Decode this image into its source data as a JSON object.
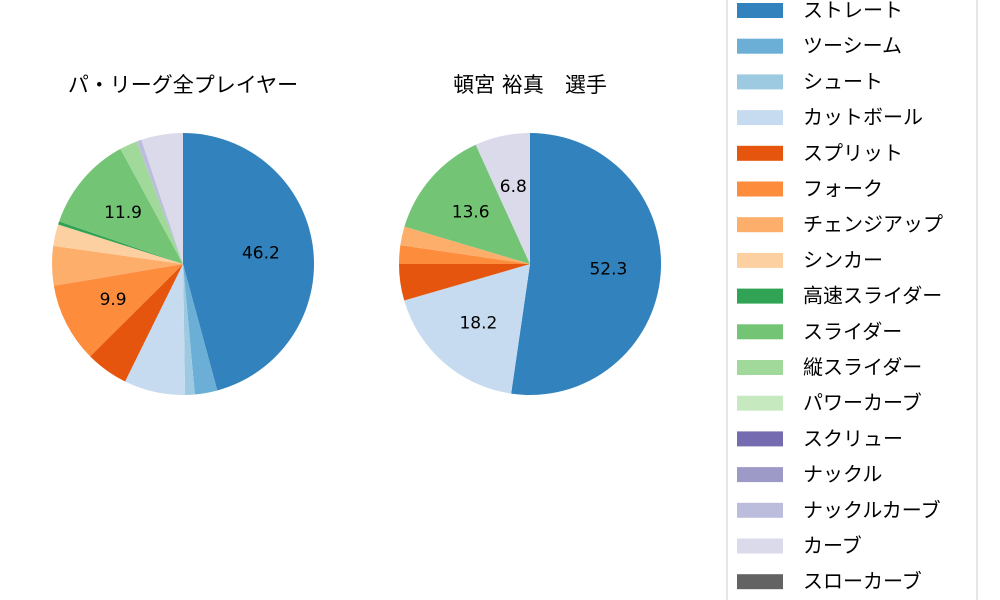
{
  "chart_data": [
    {
      "type": "pie",
      "title": "パ・リーグ全プレイヤー",
      "categories": [
        "ストレート",
        "ツーシーム",
        "シュート",
        "カットボール",
        "スプリット",
        "フォーク",
        "チェンジアップ",
        "シンカー",
        "高速スライダー",
        "スライダー",
        "縦スライダー",
        "パワーカーブ",
        "スクリュー",
        "ナックル",
        "ナックルカーブ",
        "カーブ",
        "スローカーブ"
      ],
      "values": [
        46.2,
        2.8,
        1.2,
        7.6,
        5.3,
        9.9,
        4.9,
        2.7,
        0.4,
        11.9,
        2.2,
        0.0,
        0.0,
        0.0,
        0.6,
        5.2,
        0.0
      ],
      "labels": [
        "46.2",
        "",
        "",
        "",
        "",
        "9.9",
        "",
        "",
        "",
        "11.9",
        "",
        "",
        "",
        "",
        "",
        "",
        ""
      ]
    },
    {
      "type": "pie",
      "title": "頓宮 裕真　選手",
      "categories": [
        "ストレート",
        "ツーシーム",
        "シュート",
        "カットボール",
        "スプリット",
        "フォーク",
        "チェンジアップ",
        "シンカー",
        "高速スライダー",
        "スライダー",
        "縦スライダー",
        "パワーカーブ",
        "スクリュー",
        "ナックル",
        "ナックルカーブ",
        "カーブ",
        "スローカーブ"
      ],
      "values": [
        52.3,
        0.0,
        0.0,
        18.2,
        4.5,
        2.3,
        2.3,
        0.0,
        0.0,
        13.6,
        0.0,
        0.0,
        0.0,
        0.0,
        0.0,
        6.8,
        0.0
      ],
      "labels": [
        "52.3",
        "",
        "",
        "18.2",
        "",
        "",
        "",
        "",
        "",
        "13.6",
        "",
        "",
        "",
        "",
        "",
        "6.8",
        ""
      ]
    }
  ],
  "legend": {
    "placement": "right",
    "entries": [
      {
        "label": "ストレート",
        "color": "#3182bd"
      },
      {
        "label": "ツーシーム",
        "color": "#6baed6"
      },
      {
        "label": "シュート",
        "color": "#9ecae1"
      },
      {
        "label": "カットボール",
        "color": "#c6dbef"
      },
      {
        "label": "スプリット",
        "color": "#e6550d"
      },
      {
        "label": "フォーク",
        "color": "#fd8d3c"
      },
      {
        "label": "チェンジアップ",
        "color": "#fdae6b"
      },
      {
        "label": "シンカー",
        "color": "#fdd0a2"
      },
      {
        "label": "高速スライダー",
        "color": "#31a354"
      },
      {
        "label": "スライダー",
        "color": "#74c476"
      },
      {
        "label": "縦スライダー",
        "color": "#a1d99b"
      },
      {
        "label": "パワーカーブ",
        "color": "#c7e9c0"
      },
      {
        "label": "スクリュー",
        "color": "#756bb1"
      },
      {
        "label": "ナックル",
        "color": "#9e9ac8"
      },
      {
        "label": "ナックルカーブ",
        "color": "#bcbddc"
      },
      {
        "label": "カーブ",
        "color": "#dadaeb"
      },
      {
        "label": "スローカーブ",
        "color": "#636363"
      }
    ]
  }
}
